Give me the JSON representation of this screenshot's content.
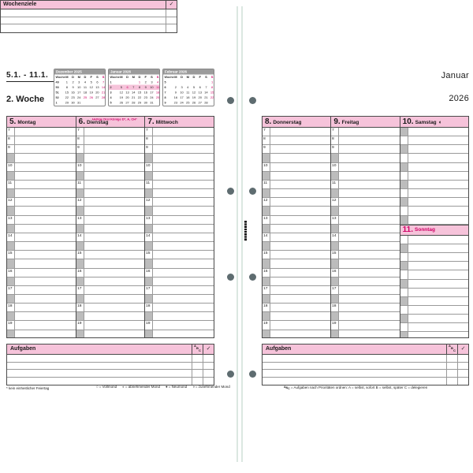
{
  "colors": {
    "pink": "#f6c3da",
    "accent_magenta": "#cf0066",
    "gutter_gray": "#bcbcbc",
    "line_dark": "#4a4a4a",
    "line_mid": "#9a9a9a",
    "minical_header_gray": "#9b9b9b",
    "punch_hole": "#5e6c70",
    "spine_line": "#dbe7e1"
  },
  "header_left": {
    "date_range": "5.1. - 11.1.",
    "week_label": "2. Woche"
  },
  "header_right": {
    "month": "Januar",
    "year": "2026"
  },
  "week_goals": {
    "title": "Wochenziele",
    "check": "✓",
    "row_count": 3
  },
  "mini_calendars": [
    {
      "title": "Dezember 2025",
      "dow": [
        "Woche",
        "M",
        "D",
        "M",
        "D",
        "F",
        "S",
        "S"
      ],
      "rows": [
        {
          "week": "49",
          "days": [
            "1",
            "2",
            "3",
            "4",
            "5",
            "6",
            "7"
          ],
          "red": [
            6
          ],
          "highlight": false
        },
        {
          "week": "50",
          "days": [
            "8",
            "9",
            "10",
            "11",
            "12",
            "13",
            "14"
          ],
          "red": [
            6
          ],
          "highlight": false
        },
        {
          "week": "51",
          "days": [
            "15",
            "16",
            "17",
            "18",
            "19",
            "20",
            "21"
          ],
          "red": [
            6
          ],
          "highlight": false
        },
        {
          "week": "52",
          "days": [
            "22",
            "23",
            "24",
            "25",
            "26",
            "27",
            "28"
          ],
          "red": [
            3,
            4,
            6
          ],
          "highlight": false
        },
        {
          "week": "1",
          "days": [
            "29",
            "30",
            "31",
            "",
            "",
            "",
            ""
          ],
          "red": [],
          "highlight": false
        }
      ]
    },
    {
      "title": "Januar 2026",
      "dow": [
        "Woche",
        "M",
        "D",
        "M",
        "D",
        "F",
        "S",
        "S"
      ],
      "rows": [
        {
          "week": "1",
          "days": [
            "",
            "",
            "",
            "1",
            "2",
            "3",
            "4"
          ],
          "red": [
            3,
            6
          ],
          "highlight": false
        },
        {
          "week": "2",
          "days": [
            "5",
            "6",
            "7",
            "8",
            "9",
            "10",
            "11"
          ],
          "red": [
            1,
            6
          ],
          "highlight": true
        },
        {
          "week": "3",
          "days": [
            "12",
            "13",
            "14",
            "15",
            "16",
            "17",
            "18"
          ],
          "red": [
            6
          ],
          "highlight": false
        },
        {
          "week": "4",
          "days": [
            "19",
            "20",
            "21",
            "22",
            "23",
            "24",
            "25"
          ],
          "red": [
            6
          ],
          "highlight": false
        },
        {
          "week": "5",
          "days": [
            "26",
            "27",
            "28",
            "29",
            "30",
            "31",
            ""
          ],
          "red": [],
          "highlight": false
        }
      ]
    },
    {
      "title": "Februar 2026",
      "dow": [
        "Woche",
        "M",
        "D",
        "M",
        "D",
        "F",
        "S",
        "S"
      ],
      "rows": [
        {
          "week": "5",
          "days": [
            "",
            "",
            "",
            "",
            "",
            "",
            "1"
          ],
          "red": [
            6
          ],
          "highlight": false
        },
        {
          "week": "6",
          "days": [
            "2",
            "3",
            "4",
            "5",
            "6",
            "7",
            "8"
          ],
          "red": [
            6
          ],
          "highlight": false
        },
        {
          "week": "7",
          "days": [
            "9",
            "10",
            "11",
            "12",
            "13",
            "14",
            "15"
          ],
          "red": [
            6
          ],
          "highlight": false
        },
        {
          "week": "8",
          "days": [
            "16",
            "17",
            "18",
            "19",
            "20",
            "21",
            "22"
          ],
          "red": [
            6
          ],
          "highlight": false
        },
        {
          "week": "9",
          "days": [
            "23",
            "24",
            "25",
            "26",
            "27",
            "28",
            ""
          ],
          "red": [],
          "highlight": false
        }
      ]
    }
  ],
  "time_labels": [
    "7",
    "8",
    "9",
    null,
    "10",
    null,
    "11",
    null,
    "12",
    null,
    "13",
    null,
    "14",
    null,
    "15",
    null,
    "16",
    null,
    "17",
    null,
    "18",
    null,
    "19",
    null
  ],
  "days_left": [
    {
      "number": "5.",
      "name": "Montag",
      "note": ""
    },
    {
      "number": "6.",
      "name": "Dienstag",
      "note": "Heilige Drei Könige D*, A, CH*"
    },
    {
      "number": "7.",
      "name": "Mittwoch",
      "note": ""
    }
  ],
  "days_right": [
    {
      "number": "8.",
      "name": "Donnerstag",
      "note": ""
    },
    {
      "number": "9.",
      "name": "Freitag",
      "note": ""
    },
    {
      "number": "10.",
      "name": "Samstag",
      "note": "",
      "moon": "◐",
      "sunday_split": true
    }
  ],
  "sunday": {
    "number": "11.",
    "name": "Sonntag"
  },
  "tasks": {
    "title": "Aufgaben",
    "priority": [
      "A",
      "B",
      "C"
    ],
    "check": "✓",
    "row_count": 4
  },
  "footer": {
    "holiday_note": "* kein einheitlicher Feiertag",
    "moon_legend": [
      {
        "symbol": "○",
        "label": "= Vollmond"
      },
      {
        "symbol": "◐",
        "label": "= abnehmender Mond"
      },
      {
        "symbol": "●",
        "label": "= Neumond"
      },
      {
        "symbol": "◑",
        "label": "= zunehmender Mond"
      }
    ],
    "tasks_note_prefix": [
      "A",
      "B",
      "C"
    ],
    "tasks_note": "= Aufgaben nach Prioritäten ordnen:  A = selbst, sofort   B = selbst, später   C = delegieren"
  }
}
